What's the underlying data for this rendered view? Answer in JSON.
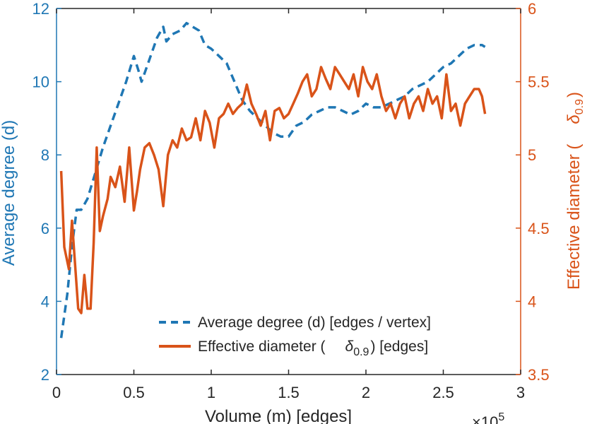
{
  "chart_data": {
    "type": "line",
    "xlabel": "Volume (m) [edges]",
    "x_exponent": "×10^5",
    "x_exponent_base": "×10",
    "x_exponent_power": "5",
    "xlim": [
      0,
      3
    ],
    "xticks": [
      "0",
      "0.5",
      "1",
      "1.5",
      "2",
      "2.5",
      "3"
    ],
    "ylabel_left": "Average degree (d)",
    "ylim_left": [
      2,
      12
    ],
    "yticks_left": [
      "2",
      "4",
      "6",
      "8",
      "10",
      "12"
    ],
    "ylabel_right_prefix": "Effective diameter (",
    "ylabel_right_symbol": "δ",
    "ylabel_right_sub": "0.9",
    "ylabel_right_suffix": ")",
    "ylim_right": [
      3.5,
      6
    ],
    "yticks_right": [
      "3.5",
      "4",
      "4.5",
      "5",
      "5.5",
      "6"
    ],
    "grid": false,
    "legend_position": "bottom-right",
    "colors": {
      "left": "#1f77b4",
      "right": "#d95319",
      "axis": "#262626"
    },
    "series": [
      {
        "name": "Average degree (d) [edges / vertex]",
        "axis": "left",
        "style": "dashed",
        "color": "#1f77b4",
        "x": [
          0.03,
          0.07,
          0.1,
          0.13,
          0.16,
          0.2,
          0.25,
          0.3,
          0.35,
          0.4,
          0.45,
          0.5,
          0.53,
          0.55,
          0.6,
          0.65,
          0.69,
          0.71,
          0.75,
          0.8,
          0.84,
          0.88,
          0.92,
          0.96,
          1.0,
          1.05,
          1.1,
          1.15,
          1.2,
          1.25,
          1.3,
          1.35,
          1.4,
          1.45,
          1.5,
          1.55,
          1.6,
          1.65,
          1.7,
          1.75,
          1.8,
          1.85,
          1.9,
          1.95,
          2.0,
          2.05,
          2.1,
          2.15,
          2.2,
          2.25,
          2.3,
          2.35,
          2.4,
          2.45,
          2.5,
          2.55,
          2.6,
          2.65,
          2.7,
          2.75,
          2.77
        ],
        "values": [
          3.0,
          4.2,
          5.5,
          6.5,
          6.5,
          6.8,
          7.5,
          8.2,
          8.8,
          9.4,
          10.0,
          10.7,
          10.3,
          10.0,
          10.6,
          11.2,
          11.5,
          11.1,
          11.3,
          11.4,
          11.6,
          11.5,
          11.4,
          11.0,
          10.9,
          10.7,
          10.5,
          10.0,
          9.5,
          9.2,
          9.0,
          8.8,
          8.6,
          8.5,
          8.5,
          8.8,
          8.9,
          9.1,
          9.2,
          9.3,
          9.3,
          9.2,
          9.1,
          9.2,
          9.4,
          9.3,
          9.3,
          9.4,
          9.5,
          9.6,
          9.8,
          9.9,
          10.0,
          10.2,
          10.4,
          10.5,
          10.7,
          10.9,
          11.0,
          11.0,
          10.95
        ]
      },
      {
        "name": "Effective diameter (δ0.9) [edges]",
        "legend_prefix": "Effective diameter (",
        "legend_symbol": "δ",
        "legend_sub": "0.9",
        "legend_suffix": ") [edges]",
        "axis": "right",
        "style": "solid",
        "color": "#d95319",
        "x": [
          0.03,
          0.05,
          0.08,
          0.1,
          0.12,
          0.14,
          0.16,
          0.18,
          0.2,
          0.22,
          0.24,
          0.26,
          0.28,
          0.3,
          0.33,
          0.35,
          0.38,
          0.41,
          0.44,
          0.47,
          0.5,
          0.52,
          0.54,
          0.57,
          0.6,
          0.63,
          0.66,
          0.69,
          0.72,
          0.75,
          0.78,
          0.81,
          0.84,
          0.87,
          0.9,
          0.93,
          0.96,
          0.99,
          1.02,
          1.05,
          1.08,
          1.11,
          1.14,
          1.17,
          1.2,
          1.23,
          1.26,
          1.29,
          1.32,
          1.35,
          1.38,
          1.41,
          1.44,
          1.47,
          1.5,
          1.53,
          1.56,
          1.59,
          1.62,
          1.65,
          1.68,
          1.71,
          1.74,
          1.77,
          1.8,
          1.83,
          1.86,
          1.89,
          1.92,
          1.95,
          1.98,
          2.01,
          2.04,
          2.07,
          2.1,
          2.13,
          2.16,
          2.19,
          2.22,
          2.25,
          2.28,
          2.31,
          2.34,
          2.37,
          2.4,
          2.43,
          2.46,
          2.49,
          2.52,
          2.55,
          2.58,
          2.61,
          2.64,
          2.67,
          2.7,
          2.73,
          2.75,
          2.77
        ],
        "values": [
          4.89,
          4.37,
          4.22,
          4.55,
          4.25,
          3.95,
          3.92,
          4.18,
          3.95,
          3.95,
          4.4,
          5.05,
          4.48,
          4.58,
          4.7,
          4.85,
          4.78,
          4.92,
          4.68,
          5.05,
          4.62,
          4.75,
          4.9,
          5.05,
          5.08,
          5.0,
          4.9,
          4.65,
          5.0,
          5.1,
          5.05,
          5.18,
          5.1,
          5.12,
          5.25,
          5.1,
          5.3,
          5.22,
          5.05,
          5.25,
          5.28,
          5.35,
          5.28,
          5.32,
          5.35,
          5.48,
          5.35,
          5.28,
          5.2,
          5.3,
          5.1,
          5.3,
          5.32,
          5.25,
          5.28,
          5.35,
          5.42,
          5.5,
          5.55,
          5.4,
          5.45,
          5.6,
          5.52,
          5.45,
          5.6,
          5.55,
          5.5,
          5.45,
          5.55,
          5.4,
          5.6,
          5.5,
          5.45,
          5.55,
          5.4,
          5.3,
          5.35,
          5.25,
          5.35,
          5.4,
          5.25,
          5.35,
          5.4,
          5.3,
          5.45,
          5.35,
          5.4,
          5.25,
          5.55,
          5.3,
          5.35,
          5.2,
          5.35,
          5.4,
          5.45,
          5.45,
          5.4,
          5.28
        ]
      }
    ]
  }
}
